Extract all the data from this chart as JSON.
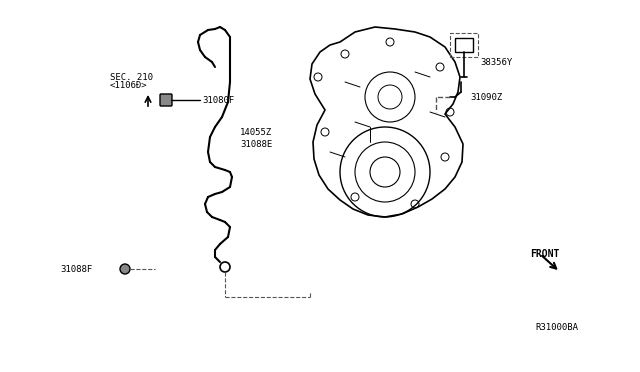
{
  "title": "",
  "background_color": "#ffffff",
  "fig_width": 6.4,
  "fig_height": 3.72,
  "dpi": 100,
  "labels": {
    "sec210": "SEC. 210",
    "c1060": "<1106Ð>",
    "part_31080F_top": "31080F",
    "part_14055Z": "14055Z",
    "part_31088E": "31088E",
    "part_31088F_bot": "31088F",
    "part_38356Y": "38356Y",
    "part_31090Z": "31090Z",
    "front": "FRONT",
    "ref": "R31000BA"
  },
  "colors": {
    "line": "#000000",
    "dashed": "#555555",
    "text": "#000000",
    "background": "#ffffff"
  }
}
